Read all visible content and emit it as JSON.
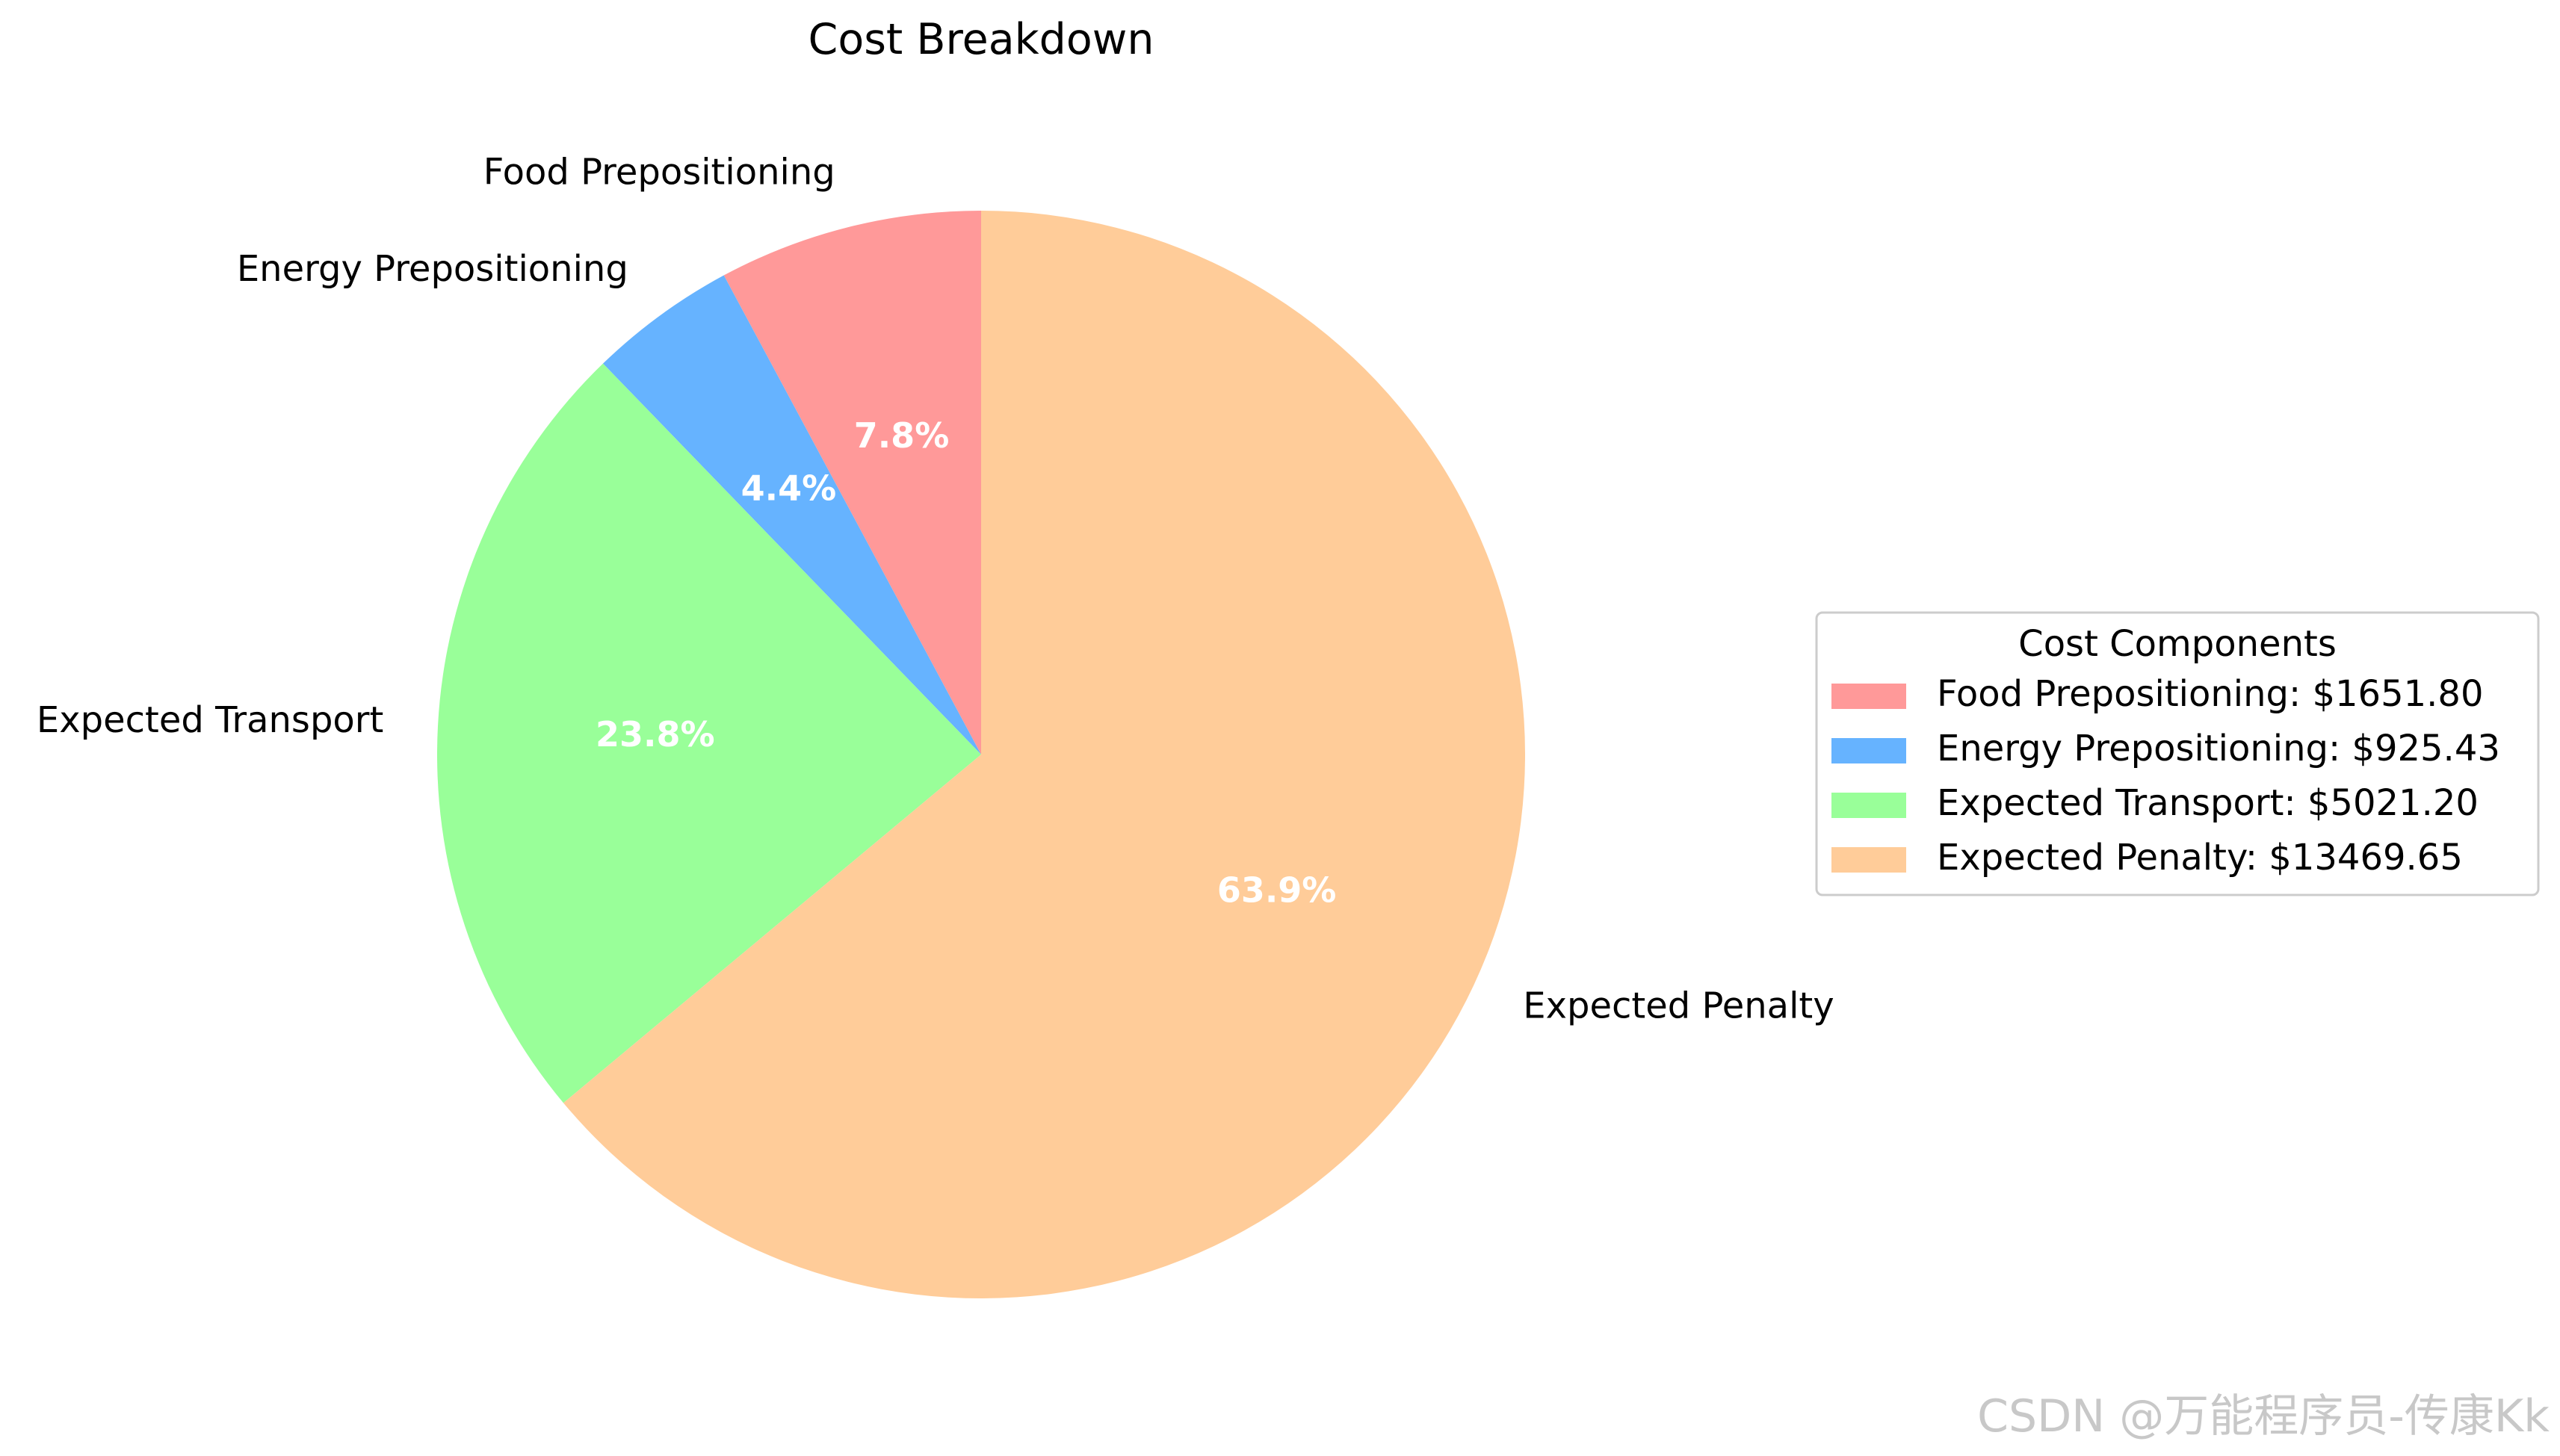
{
  "chart_data": {
    "type": "pie",
    "title": "Cost Breakdown",
    "start_angle_deg": 90,
    "direction": "counterclockwise",
    "slices": [
      {
        "label": "Food Prepositioning",
        "value": 1651.8,
        "pct_label": "7.8%",
        "legend_label": "Food Prepositioning: $1651.80",
        "color": "#ff9999"
      },
      {
        "label": "Energy Prepositioning",
        "value": 925.43,
        "pct_label": "4.4%",
        "legend_label": "Energy Prepositioning: $925.43",
        "color": "#66b3ff"
      },
      {
        "label": "Expected Transport",
        "value": 5021.2,
        "pct_label": "23.8%",
        "legend_label": "Expected Transport: $5021.20",
        "color": "#99ff99"
      },
      {
        "label": "Expected Penalty",
        "value": 13469.65,
        "pct_label": "63.9%",
        "legend_label": "Expected Penalty: $13469.65",
        "color": "#ffcc99"
      }
    ],
    "legend": {
      "title": "Cost Components",
      "placement": "right"
    }
  },
  "watermark": "CSDN @万能程序员-传康Kk"
}
